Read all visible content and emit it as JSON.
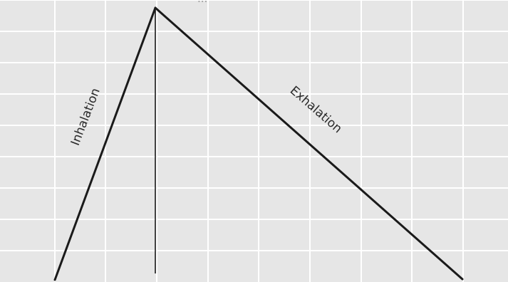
{
  "diagram": {
    "inhalation_label": "Inhalation",
    "exhalation_label": "Exhalation",
    "peak_label": "...",
    "colors": {
      "background": "#e6e6e6",
      "grid": "#ffffff",
      "stroke": "#1a1a1a"
    }
  }
}
